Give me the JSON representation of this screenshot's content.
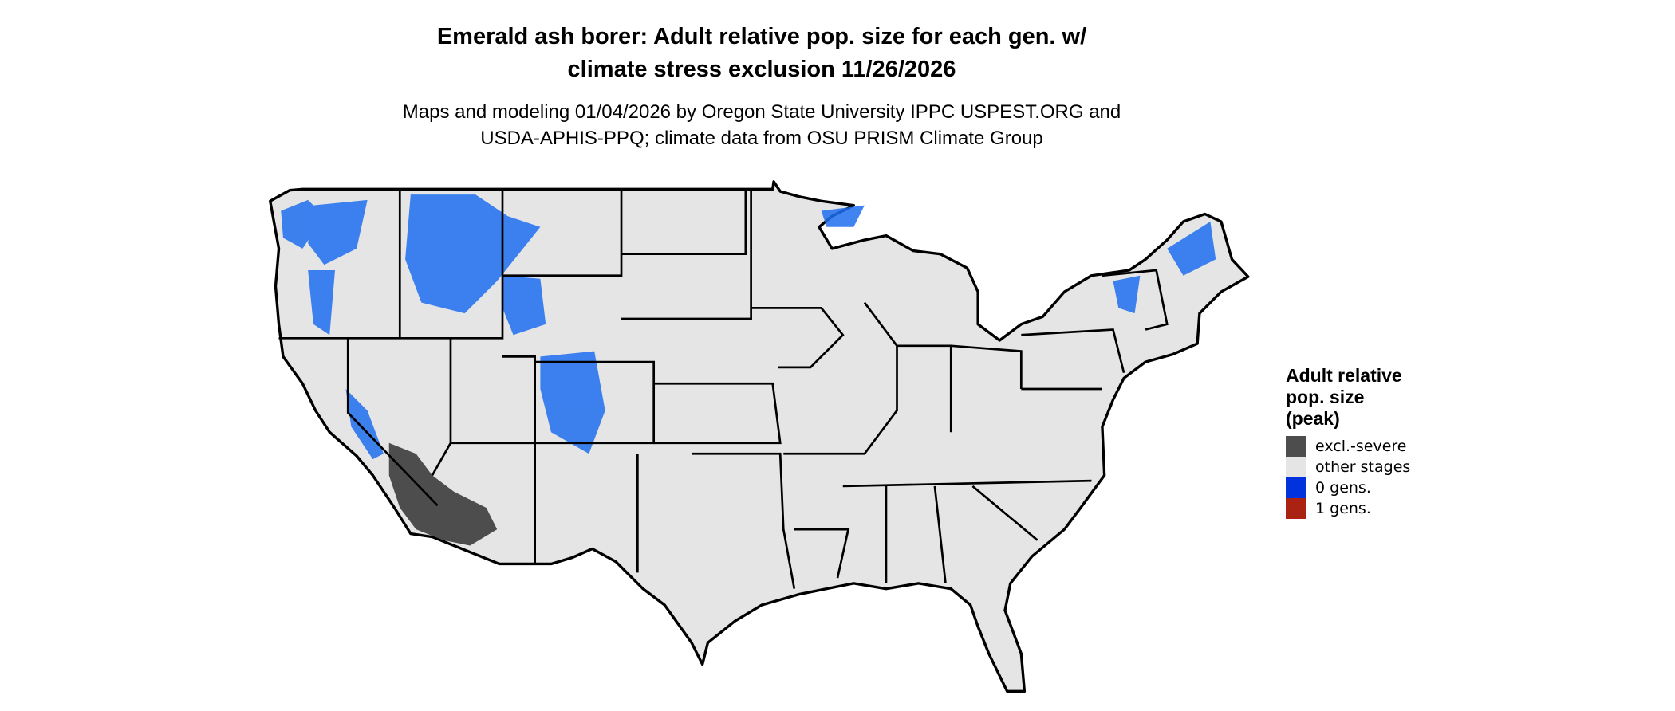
{
  "title": "Emerald ash borer: Adult relative pop. size for each gen. w/\nclimate stress exclusion 11/26/2026",
  "title_lines": [
    "Emerald ash borer: Adult relative pop. size for each gen. w/",
    "climate stress exclusion 11/26/2026"
  ],
  "subtitle_lines": [
    "Maps and modeling 01/04/2026 by Oregon State University IPPC USPEST.ORG and",
    "USDA-APHIS-PPQ; climate data from OSU PRISM Climate Group"
  ],
  "legend": {
    "title_lines": [
      "Adult relative",
      "pop. size",
      "(peak)"
    ],
    "items": [
      {
        "label": "excl.-severe",
        "color": "#4d4d4d"
      },
      {
        "label": "other stages",
        "color": "#e5e5e5"
      },
      {
        "label": "0 gens.",
        "color": "#0033dd"
      },
      {
        "label": "1 gens.",
        "color": "#aa2211"
      }
    ]
  },
  "colors": {
    "land": "#e5e5e5",
    "border": "#000000",
    "zero_gens_light": "#1e90ff"
  }
}
